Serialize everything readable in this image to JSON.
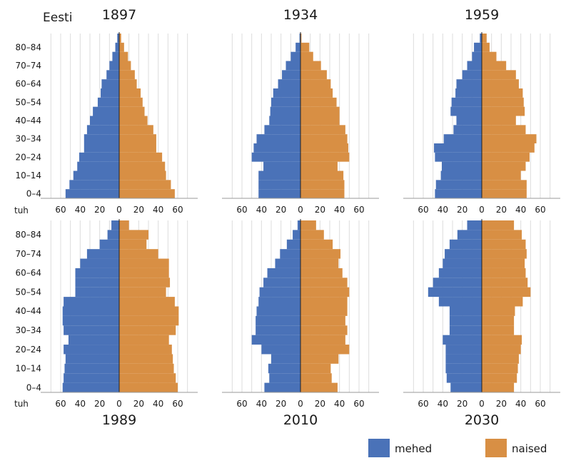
{
  "title": "Eesti",
  "unit": "tuh",
  "legend": [
    {
      "name": "mehed",
      "color": "#4a72b8"
    },
    {
      "name": "naised",
      "color": "#d88f44"
    }
  ],
  "age_labels": [
    "0–4",
    "10–14",
    "20–24",
    "30–34",
    "40–44",
    "50–54",
    "60–64",
    "70–74",
    "80–84"
  ],
  "ticks": [
    "60",
    "40",
    "20",
    "0",
    "20",
    "40",
    "60"
  ],
  "chart_data": [
    {
      "type": "bar",
      "year": "1897",
      "male": [
        55,
        51,
        47,
        43,
        41,
        36,
        36,
        33,
        30,
        27,
        22,
        19,
        18,
        13,
        10,
        7,
        4,
        2
      ],
      "female": [
        57,
        53,
        48,
        47,
        44,
        38,
        38,
        35,
        29,
        26,
        24,
        22,
        18,
        16,
        12,
        9,
        5,
        2
      ]
    },
    {
      "type": "bar",
      "year": "1934",
      "male": [
        43,
        43,
        43,
        38,
        50,
        48,
        45,
        37,
        32,
        31,
        30,
        28,
        23,
        19,
        15,
        10,
        5,
        1
      ],
      "female": [
        45,
        45,
        44,
        38,
        50,
        49,
        48,
        46,
        40,
        40,
        37,
        33,
        31,
        27,
        21,
        13,
        9,
        1
      ]
    },
    {
      "type": "bar",
      "year": "1959",
      "male": [
        48,
        47,
        42,
        41,
        48,
        49,
        39,
        29,
        26,
        32,
        31,
        27,
        26,
        20,
        15,
        10,
        8,
        2
      ],
      "female": [
        46,
        46,
        40,
        45,
        49,
        54,
        56,
        45,
        35,
        44,
        43,
        42,
        38,
        35,
        25,
        15,
        8,
        5
      ]
    },
    {
      "type": "bar",
      "year": "1989",
      "male": [
        58,
        57,
        56,
        55,
        57,
        52,
        57,
        58,
        58,
        57,
        45,
        45,
        45,
        40,
        33,
        20,
        12,
        8
      ],
      "female": [
        60,
        58,
        56,
        55,
        54,
        51,
        58,
        61,
        61,
        57,
        48,
        52,
        51,
        51,
        40,
        28,
        30,
        10
      ]
    },
    {
      "type": "bar",
      "year": "2010",
      "male": [
        37,
        32,
        33,
        30,
        40,
        50,
        46,
        46,
        45,
        43,
        42,
        38,
        34,
        26,
        21,
        14,
        8,
        3
      ],
      "female": [
        38,
        32,
        31,
        39,
        50,
        46,
        48,
        46,
        48,
        48,
        50,
        48,
        43,
        39,
        41,
        33,
        24,
        16
      ]
    },
    {
      "type": "bar",
      "year": "2030",
      "male": [
        32,
        36,
        37,
        37,
        37,
        40,
        33,
        33,
        33,
        44,
        55,
        50,
        44,
        40,
        38,
        33,
        25,
        15
      ],
      "female": [
        33,
        36,
        37,
        38,
        40,
        41,
        33,
        33,
        34,
        42,
        50,
        47,
        45,
        44,
        46,
        45,
        41,
        33
      ]
    }
  ]
}
